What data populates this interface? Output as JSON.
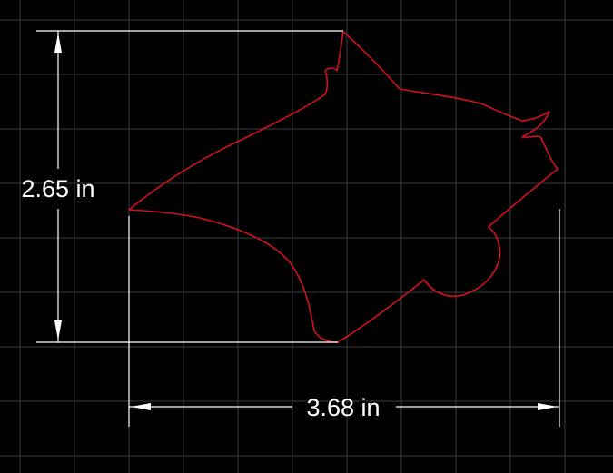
{
  "drawing": {
    "background_color": "#000000",
    "grid_color": "#3a3d42",
    "outline_color": "#d4101a",
    "dimension_color": "#ffffff"
  },
  "dimensions": {
    "height": {
      "value": 2.65,
      "unit": "in",
      "label": "2.65 in"
    },
    "width": {
      "value": 3.68,
      "unit": "in",
      "label": "3.68 in"
    }
  },
  "shape": {
    "name": "horse-head"
  }
}
